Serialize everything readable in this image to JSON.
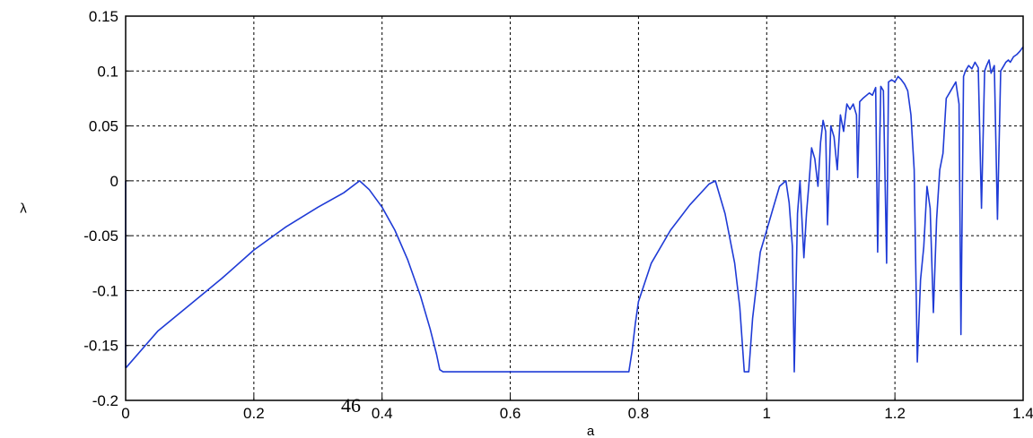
{
  "page_number": "46",
  "chart_data": {
    "type": "line",
    "title": "",
    "xlabel": "a",
    "ylabel": "λ",
    "xlim": [
      0,
      1.4
    ],
    "ylim": [
      -0.2,
      0.15
    ],
    "grid": true,
    "line_color": "#1f3bd6",
    "x_ticks": [
      0,
      0.2,
      0.4,
      0.6,
      0.8,
      1,
      1.2,
      1.4
    ],
    "x_tick_labels": [
      "0",
      "0.2",
      "0.4",
      "0.6",
      "0.8",
      "1",
      "1.2",
      "1.4"
    ],
    "y_ticks": [
      0.15,
      0.1,
      0.05,
      0,
      -0.05,
      -0.1,
      -0.15,
      -0.2
    ],
    "y_tick_labels": [
      "0.15",
      "0.1",
      "0.05",
      "0",
      "-0.05",
      "-0.1",
      "-0.15",
      "-0.2"
    ],
    "series": [
      {
        "x": [
          0,
          0,
          0.001,
          0.05,
          0.1,
          0.15,
          0.2,
          0.25,
          0.3,
          0.34,
          0.365,
          0.38,
          0.4,
          0.42,
          0.44,
          0.46,
          0.475,
          0.485,
          0.49,
          0.495,
          0.6,
          0.7,
          0.785,
          0.79,
          0.795,
          0.8,
          0.82,
          0.85,
          0.88,
          0.91,
          0.92,
          0.935,
          0.95,
          0.958,
          0.965,
          0.972,
          0.978,
          0.985,
          0.99,
          1.0,
          1.01,
          1.02,
          1.03,
          1.035,
          1.04,
          1.043,
          1.048,
          1.052,
          1.058,
          1.062,
          1.067,
          1.07,
          1.075,
          1.08,
          1.084,
          1.088,
          1.092,
          1.095,
          1.1,
          1.105,
          1.11,
          1.115,
          1.12,
          1.125,
          1.13,
          1.135,
          1.14,
          1.142,
          1.145,
          1.15,
          1.16,
          1.165,
          1.17,
          1.173,
          1.178,
          1.182,
          1.187,
          1.19,
          1.195,
          1.2,
          1.205,
          1.21,
          1.215,
          1.22,
          1.225,
          1.23,
          1.235,
          1.24,
          1.245,
          1.25,
          1.255,
          1.26,
          1.265,
          1.27,
          1.275,
          1.28,
          1.285,
          1.29,
          1.295,
          1.3,
          1.303,
          1.307,
          1.31,
          1.315,
          1.32,
          1.325,
          1.33,
          1.335,
          1.34,
          1.343,
          1.347,
          1.35,
          1.355,
          1.36,
          1.365,
          1.37,
          1.373,
          1.377,
          1.38,
          1.385,
          1.39,
          1.395,
          1.4
        ],
        "y": [
          0,
          -0.17,
          -0.17,
          -0.137,
          -0.113,
          -0.089,
          -0.063,
          -0.042,
          -0.024,
          -0.011,
          0,
          -0.008,
          -0.024,
          -0.045,
          -0.072,
          -0.105,
          -0.135,
          -0.158,
          -0.172,
          -0.174,
          -0.174,
          -0.174,
          -0.174,
          -0.155,
          -0.13,
          -0.11,
          -0.075,
          -0.045,
          -0.022,
          -0.003,
          0,
          -0.03,
          -0.075,
          -0.115,
          -0.174,
          -0.174,
          -0.125,
          -0.09,
          -0.065,
          -0.045,
          -0.025,
          -0.005,
          0,
          -0.02,
          -0.06,
          -0.174,
          -0.03,
          0,
          -0.07,
          -0.03,
          0.005,
          0.03,
          0.02,
          -0.005,
          0.035,
          0.055,
          0.045,
          -0.04,
          0.05,
          0.04,
          0.01,
          0.06,
          0.045,
          0.07,
          0.065,
          0.07,
          0.06,
          0.003,
          0.072,
          0.075,
          0.08,
          0.078,
          0.085,
          -0.065,
          0.086,
          0.082,
          -0.075,
          0.09,
          0.092,
          0.09,
          0.095,
          0.092,
          0.088,
          0.082,
          0.06,
          0.01,
          -0.165,
          -0.09,
          -0.06,
          -0.005,
          -0.025,
          -0.12,
          -0.035,
          0.01,
          0.025,
          0.075,
          0.08,
          0.085,
          0.09,
          0.07,
          -0.14,
          0.095,
          0.1,
          0.105,
          0.102,
          0.108,
          0.103,
          -0.025,
          0.1,
          0.105,
          0.11,
          0.098,
          0.105,
          -0.035,
          0.1,
          0.105,
          0.108,
          0.11,
          0.108,
          0.113,
          0.115,
          0.118,
          0.122
        ]
      }
    ]
  }
}
